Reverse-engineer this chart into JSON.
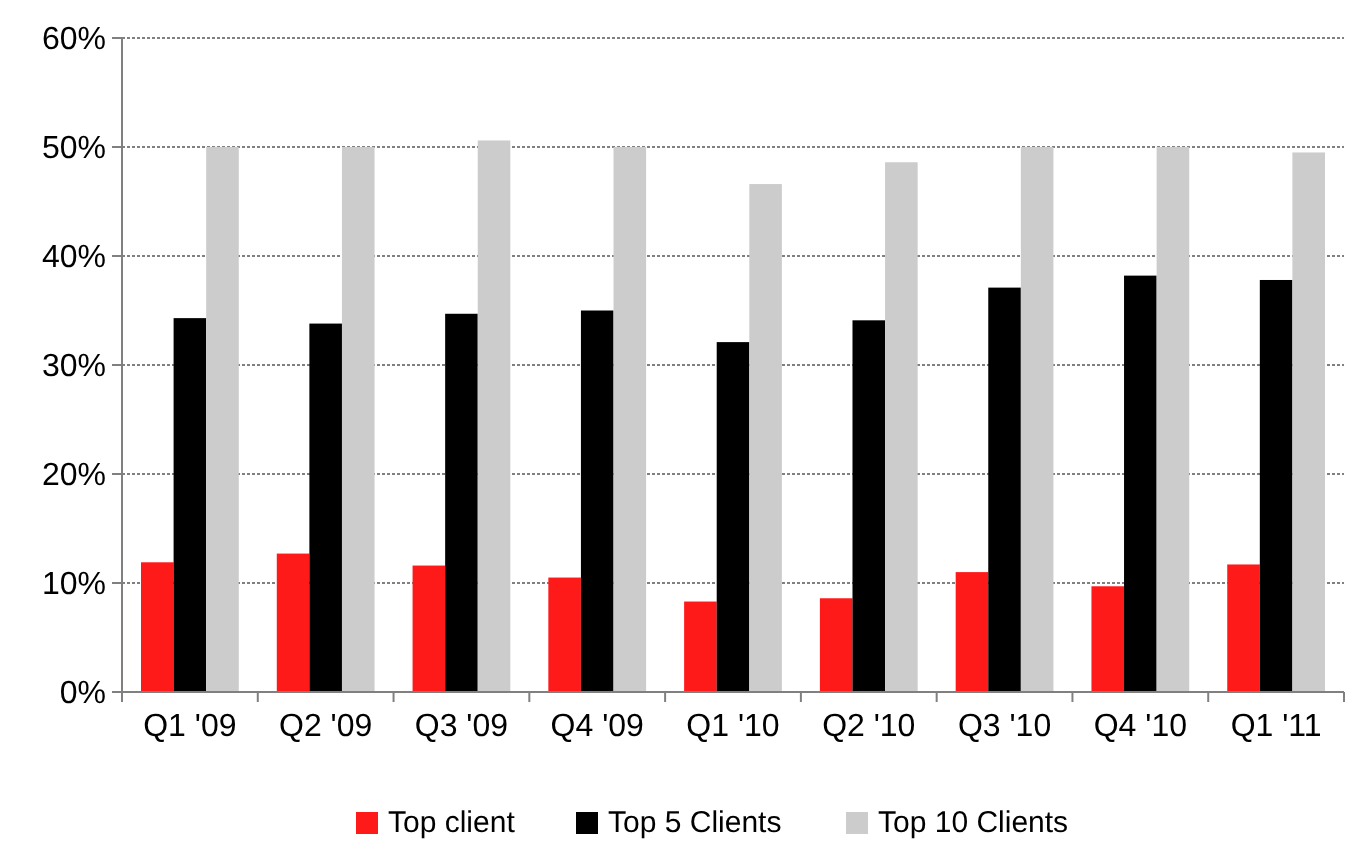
{
  "chart_data": {
    "type": "bar",
    "categories": [
      "Q1 '09",
      "Q2 '09",
      "Q3 '09",
      "Q4 '09",
      "Q1 '10",
      "Q2 '10",
      "Q3 '10",
      "Q4 '10",
      "Q1 '11"
    ],
    "series": [
      {
        "name": "Top client",
        "color": "#ff1a1a",
        "values": [
          11.9,
          12.7,
          11.6,
          10.5,
          8.3,
          8.6,
          11.0,
          9.7,
          11.7
        ]
      },
      {
        "name": "Top 5 Clients",
        "color": "#000000",
        "values": [
          34.3,
          33.8,
          34.7,
          35.0,
          32.1,
          34.1,
          37.1,
          38.2,
          37.8
        ]
      },
      {
        "name": "Top 10 Clients",
        "color": "#cccccc",
        "values": [
          50.0,
          50.0,
          50.6,
          50.0,
          46.6,
          48.6,
          50.0,
          50.0,
          49.5
        ]
      }
    ],
    "ylim": [
      0,
      60
    ],
    "yticks": [
      {
        "value": 0,
        "label": "0%"
      },
      {
        "value": 10,
        "label": "10%"
      },
      {
        "value": 20,
        "label": "20%"
      },
      {
        "value": 30,
        "label": "30%"
      },
      {
        "value": 40,
        "label": "40%"
      },
      {
        "value": 50,
        "label": "50%"
      },
      {
        "value": 60,
        "label": "60%"
      }
    ],
    "grid": "y",
    "legend": "bottom"
  }
}
